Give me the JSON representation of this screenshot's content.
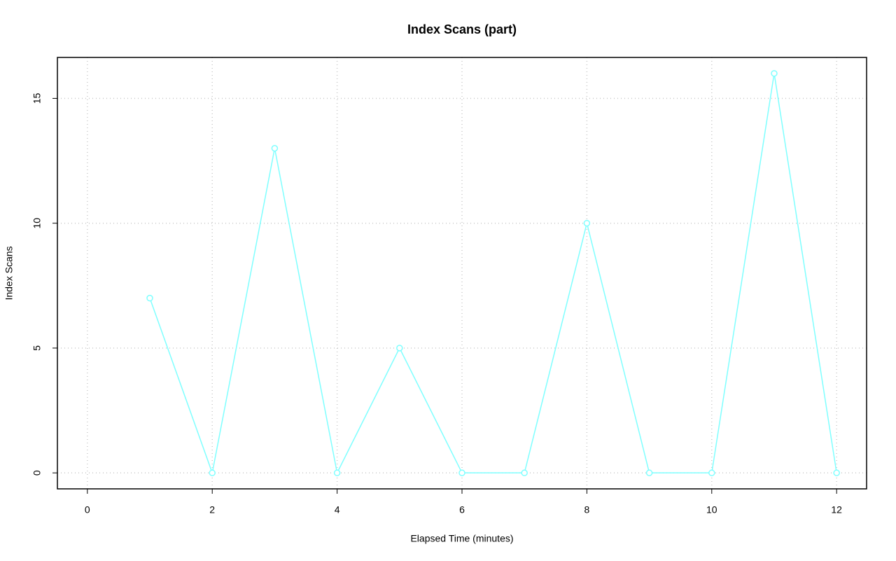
{
  "chart_data": {
    "type": "line",
    "title": "Index Scans (part)",
    "x_label": "Elapsed Time (minutes)",
    "y_label": "Index Scans",
    "x": [
      1,
      2,
      3,
      4,
      5,
      6,
      7,
      8,
      9,
      10,
      11,
      12
    ],
    "series": [
      {
        "name": "Index Scans",
        "color": "#7fffff",
        "values": [
          7,
          0,
          13,
          0,
          5,
          0,
          0,
          10,
          0,
          0,
          16,
          0
        ]
      }
    ],
    "xlim": [
      -0.48,
      12.48
    ],
    "xticks": [
      0,
      2,
      4,
      6,
      8,
      10,
      12
    ],
    "ylim": [
      -0.64,
      16.64
    ],
    "yticks": [
      0,
      5,
      10,
      15
    ],
    "grid": true
  }
}
